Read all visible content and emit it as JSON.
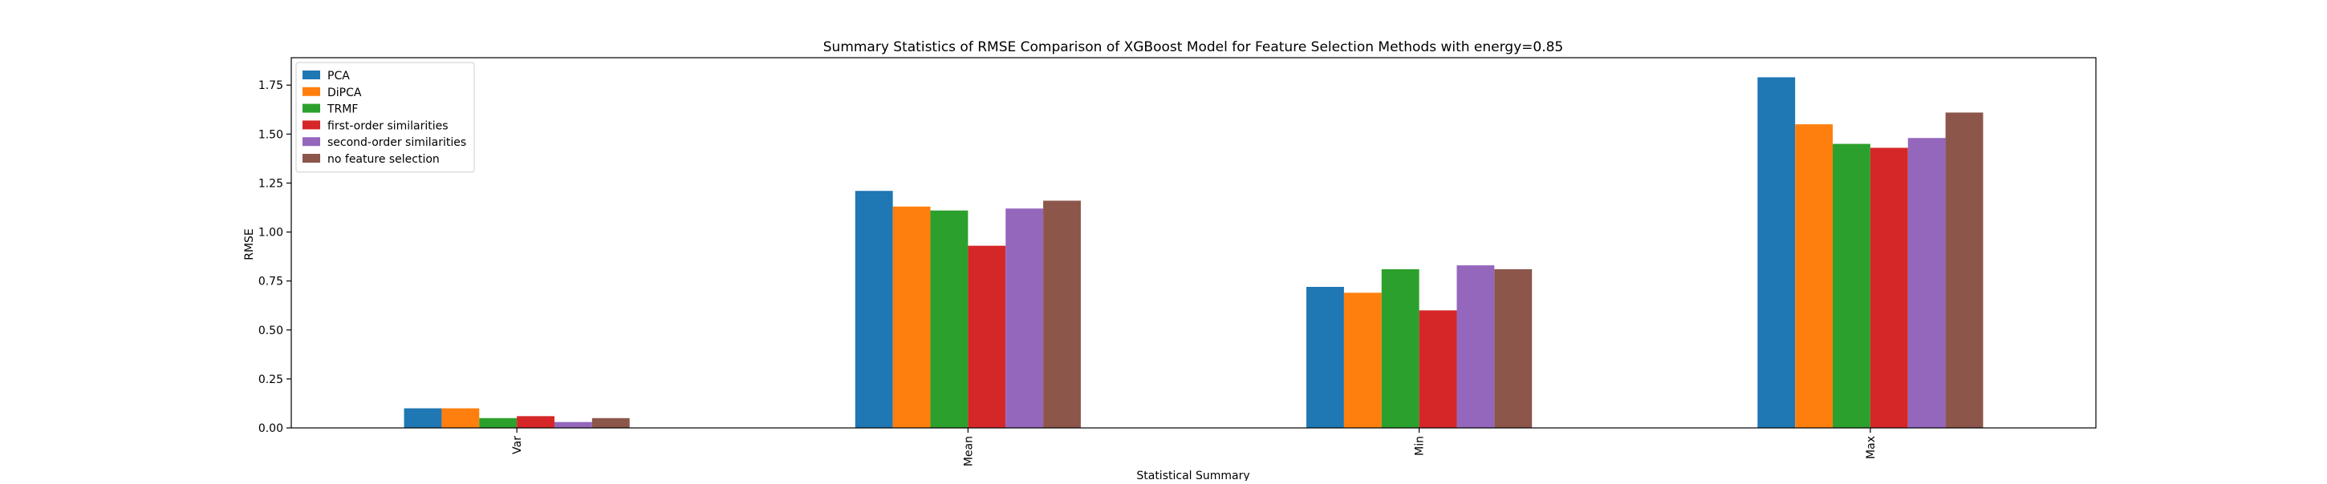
{
  "chart_data": {
    "type": "bar",
    "title": "Summary Statistics of RMSE Comparison of XGBoost Model for Feature Selection Methods with energy=0.85",
    "xlabel": "Statistical Summary",
    "ylabel": "RMSE",
    "categories": [
      "Var",
      "Mean",
      "Min",
      "Max"
    ],
    "ylim": [
      0,
      1.89
    ],
    "yticks": [
      0.0,
      0.25,
      0.5,
      0.75,
      1.0,
      1.25,
      1.5,
      1.75
    ],
    "ytick_labels": [
      "0.00",
      "0.25",
      "0.50",
      "0.75",
      "1.00",
      "1.25",
      "1.50",
      "1.75"
    ],
    "grid": false,
    "legend_position": "top-left",
    "series": [
      {
        "name": "PCA",
        "color": "#1f77b4",
        "values": [
          0.1,
          1.21,
          0.72,
          1.79
        ]
      },
      {
        "name": "DiPCA",
        "color": "#ff7f0e",
        "values": [
          0.1,
          1.13,
          0.69,
          1.55
        ]
      },
      {
        "name": "TRMF",
        "color": "#2ca02c",
        "values": [
          0.05,
          1.11,
          0.81,
          1.45
        ]
      },
      {
        "name": "first-order similarities",
        "color": "#d62728",
        "values": [
          0.06,
          0.93,
          0.6,
          1.43
        ]
      },
      {
        "name": "second-order similarities",
        "color": "#9467bd",
        "values": [
          0.03,
          1.12,
          0.83,
          1.48
        ]
      },
      {
        "name": "no feature selection",
        "color": "#8c564b",
        "values": [
          0.05,
          1.16,
          0.81,
          1.61
        ]
      }
    ]
  }
}
